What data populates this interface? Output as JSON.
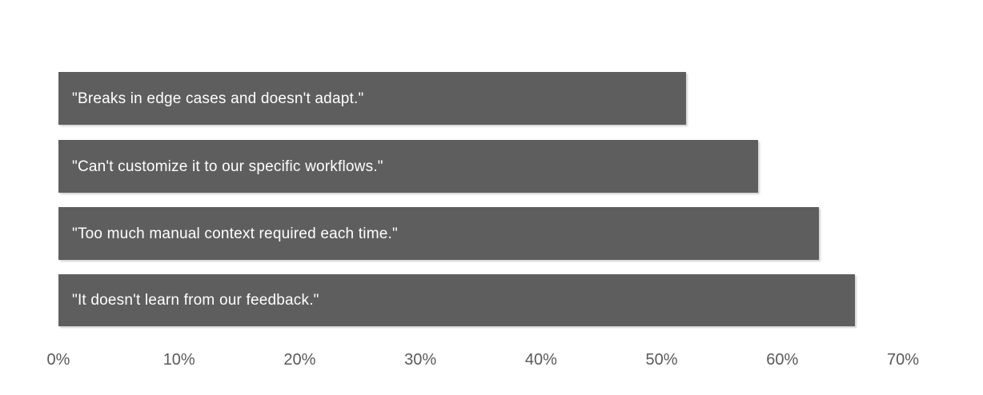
{
  "chart_data": {
    "type": "bar",
    "orientation": "horizontal",
    "title": "",
    "xlabel": "",
    "ylabel": "",
    "categories": [
      "\"Breaks in edge cases and doesn't adapt.\"",
      "\"Can't customize it to our specific workflows.\"",
      "\"Too much manual context required each time.\"",
      "\"It doesn't learn from our feedback.\""
    ],
    "values": [
      52,
      58,
      63,
      66
    ],
    "xlim": [
      0,
      70
    ],
    "x_ticks": [
      "0%",
      "10%",
      "20%",
      "30%",
      "40%",
      "50%",
      "60%",
      "70%"
    ],
    "grid": false,
    "legend": false,
    "bar_color": "#5E5E5E",
    "bar_label_color": "#FFFFFF",
    "axis_text_color": "#595959"
  }
}
